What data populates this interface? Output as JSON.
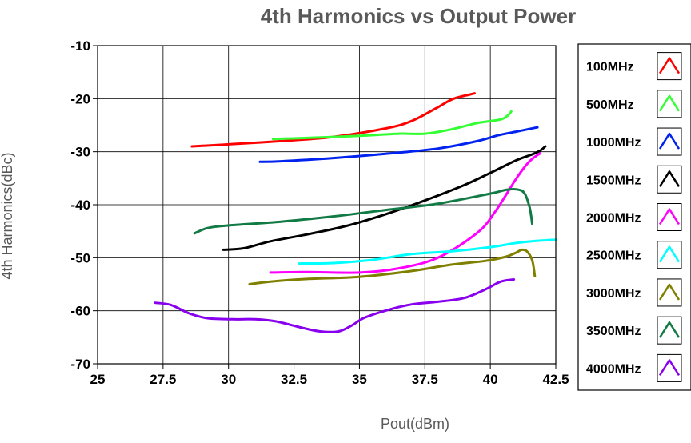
{
  "chart_data": {
    "type": "line",
    "title": "4th Harmonics vs Output Power",
    "xlabel": "Pout(dBm)",
    "ylabel": "4th Harmonics(dBc)",
    "xlim": [
      25,
      42.5
    ],
    "ylim": [
      -70,
      -10
    ],
    "xticks": [
      "25",
      "27.5",
      "30",
      "32.5",
      "35",
      "37.5",
      "40",
      "42.5"
    ],
    "yticks": [
      "-10",
      "-20",
      "-30",
      "-40",
      "-50",
      "-60",
      "-70"
    ],
    "grid": true,
    "legend_position": "right",
    "series": [
      {
        "name": "100MHz",
        "color": "#ff0000",
        "points": [
          [
            28.6,
            -29.0
          ],
          [
            30,
            -28.6
          ],
          [
            32,
            -28.0
          ],
          [
            34,
            -27.2
          ],
          [
            36,
            -25.6
          ],
          [
            37,
            -24.2
          ],
          [
            38,
            -21.6
          ],
          [
            38.6,
            -20.0
          ],
          [
            39.4,
            -19.0
          ]
        ]
      },
      {
        "name": "500MHz",
        "color": "#33ff33",
        "points": [
          [
            31.7,
            -27.6
          ],
          [
            33,
            -27.4
          ],
          [
            35,
            -27.0
          ],
          [
            36.5,
            -26.6
          ],
          [
            37.5,
            -26.6
          ],
          [
            38.5,
            -25.8
          ],
          [
            39.5,
            -24.6
          ],
          [
            40.4,
            -23.9
          ],
          [
            40.7,
            -23.0
          ],
          [
            40.8,
            -22.4
          ]
        ]
      },
      {
        "name": "1000MHz",
        "color": "#0022ee",
        "points": [
          [
            31.2,
            -31.9
          ],
          [
            32,
            -31.8
          ],
          [
            34,
            -31.2
          ],
          [
            36,
            -30.4
          ],
          [
            38,
            -29.4
          ],
          [
            39.5,
            -28.0
          ],
          [
            40.3,
            -26.9
          ],
          [
            41,
            -26.2
          ],
          [
            41.8,
            -25.4
          ]
        ]
      },
      {
        "name": "1500MHz",
        "color": "#000000",
        "points": [
          [
            29.8,
            -48.5
          ],
          [
            30.6,
            -48.2
          ],
          [
            31.6,
            -46.9
          ],
          [
            33,
            -45.6
          ],
          [
            34.5,
            -44.0
          ],
          [
            36,
            -41.8
          ],
          [
            37.5,
            -39.2
          ],
          [
            39,
            -36.3
          ],
          [
            40,
            -34.0
          ],
          [
            41,
            -31.6
          ],
          [
            41.6,
            -30.5
          ],
          [
            41.9,
            -29.8
          ],
          [
            42.1,
            -29.0
          ]
        ]
      },
      {
        "name": "2000MHz",
        "color": "#ff00ff",
        "points": [
          [
            31.6,
            -52.8
          ],
          [
            33,
            -52.7
          ],
          [
            35,
            -52.8
          ],
          [
            36.5,
            -52.0
          ],
          [
            38,
            -50.0
          ],
          [
            39.5,
            -45.3
          ],
          [
            40.2,
            -41.2
          ],
          [
            41,
            -35.0
          ],
          [
            41.5,
            -31.8
          ],
          [
            41.9,
            -30.3
          ]
        ]
      },
      {
        "name": "2500MHz",
        "color": "#00ffff",
        "points": [
          [
            32.7,
            -51.1
          ],
          [
            34,
            -51.0
          ],
          [
            35.5,
            -50.4
          ],
          [
            37,
            -49.3
          ],
          [
            38.5,
            -48.8
          ],
          [
            40,
            -48.0
          ],
          [
            41,
            -47.2
          ],
          [
            41.8,
            -46.8
          ],
          [
            42.5,
            -46.6
          ]
        ]
      },
      {
        "name": "3000MHz",
        "color": "#808000",
        "points": [
          [
            30.8,
            -55.0
          ],
          [
            31.6,
            -54.5
          ],
          [
            33,
            -54.0
          ],
          [
            35,
            -53.6
          ],
          [
            37,
            -52.5
          ],
          [
            38.5,
            -51.3
          ],
          [
            39.8,
            -50.6
          ],
          [
            40.6,
            -49.8
          ],
          [
            41,
            -49.0
          ],
          [
            41.2,
            -48.5
          ],
          [
            41.4,
            -48.8
          ],
          [
            41.6,
            -50.5
          ],
          [
            41.7,
            -53.5
          ]
        ]
      },
      {
        "name": "3500MHz",
        "color": "#127a45",
        "points": [
          [
            28.7,
            -45.4
          ],
          [
            29.2,
            -44.4
          ],
          [
            30,
            -43.9
          ],
          [
            32,
            -43.2
          ],
          [
            34,
            -42.2
          ],
          [
            36,
            -41.0
          ],
          [
            38,
            -39.8
          ],
          [
            40,
            -37.9
          ],
          [
            40.6,
            -37.2
          ],
          [
            41,
            -37.1
          ],
          [
            41.3,
            -37.8
          ],
          [
            41.5,
            -40.5
          ],
          [
            41.6,
            -43.6
          ]
        ]
      },
      {
        "name": "4000MHz",
        "color": "#8800ee",
        "points": [
          [
            27.2,
            -58.5
          ],
          [
            27.8,
            -58.9
          ],
          [
            28.5,
            -60.5
          ],
          [
            29.2,
            -61.4
          ],
          [
            30.2,
            -61.6
          ],
          [
            31,
            -61.6
          ],
          [
            31.8,
            -62.0
          ],
          [
            32.8,
            -63.2
          ],
          [
            33.5,
            -63.9
          ],
          [
            34.2,
            -63.9
          ],
          [
            34.7,
            -62.8
          ],
          [
            35.2,
            -61.3
          ],
          [
            36.2,
            -59.7
          ],
          [
            37,
            -58.8
          ],
          [
            38,
            -58.3
          ],
          [
            39,
            -57.6
          ],
          [
            39.8,
            -56.0
          ],
          [
            40.4,
            -54.5
          ],
          [
            40.9,
            -54.1
          ]
        ]
      }
    ]
  }
}
